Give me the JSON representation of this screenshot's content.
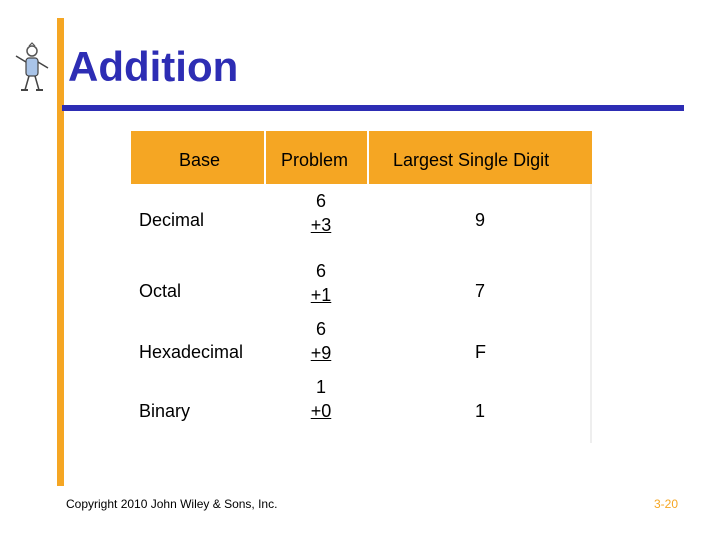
{
  "slide": {
    "title": "Addition",
    "footer": "Copyright 2010 John Wiley & Sons, Inc.",
    "page_number": "3-20"
  },
  "colors": {
    "accent_orange": "#F5A623",
    "title_blue": "#2D2DB4"
  },
  "table": {
    "headers": {
      "base": "Base",
      "problem": "Problem",
      "largest_digit": "Largest Single Digit"
    },
    "rows": [
      {
        "base": "Decimal",
        "addend_top": "6",
        "addend_bottom": "+3",
        "largest_digit": "9"
      },
      {
        "base": "Octal",
        "addend_top": "6",
        "addend_bottom": "+1",
        "largest_digit": "7"
      },
      {
        "base": "Hexadecimal",
        "addend_top": "6",
        "addend_bottom": "+9",
        "largest_digit": "F"
      },
      {
        "base": "Binary",
        "addend_top": "1",
        "addend_bottom": "+0",
        "largest_digit": "1"
      }
    ]
  },
  "logo": {
    "icon": "cartoon-figure-logo"
  }
}
